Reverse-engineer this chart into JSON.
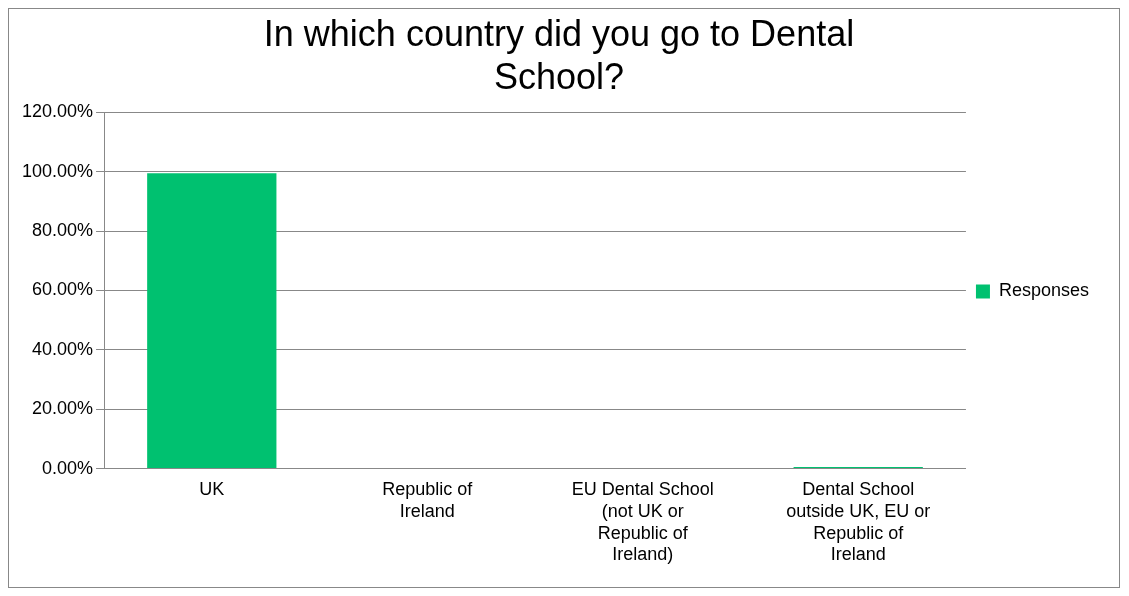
{
  "chart_data": {
    "type": "bar",
    "title": "In which country did you go to Dental School?",
    "categories": [
      "UK",
      "Republic of Ireland",
      "EU Dental School (not UK or Republic of Ireland)",
      "Dental School outside UK, EU or Republic of Ireland"
    ],
    "series": [
      {
        "name": "Responses",
        "color": "#00c170",
        "values": [
          99.5,
          0,
          0,
          0.5
        ]
      }
    ],
    "ylim": [
      0,
      120
    ],
    "yticks": [
      {
        "value": 0,
        "label": "0.00%"
      },
      {
        "value": 20,
        "label": "20.00%"
      },
      {
        "value": 40,
        "label": "40.00%"
      },
      {
        "value": 60,
        "label": "60.00%"
      },
      {
        "value": 80,
        "label": "80.00%"
      },
      {
        "value": 100,
        "label": "100.00%"
      },
      {
        "value": 120,
        "label": "120.00%"
      }
    ],
    "grid": "y",
    "legend": "right"
  }
}
